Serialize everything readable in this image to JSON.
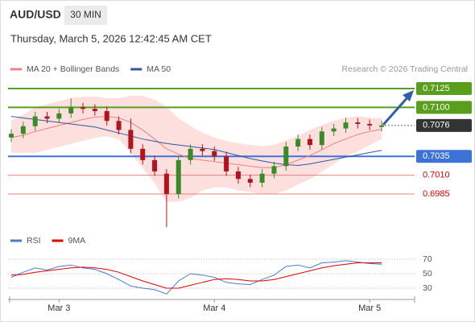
{
  "header": {
    "symbol": "AUD/USD",
    "interval": "30 MIN",
    "timestamp": "Thursday, March 5, 2026 12:42:45 AM CET",
    "credit": "Research © 2026 Trading Central"
  },
  "chart_data": [
    {
      "type": "candlestick",
      "categories": [
        null,
        null,
        null,
        null,
        "Mar 3",
        null,
        null,
        null,
        null,
        null,
        null,
        null,
        null,
        null,
        null,
        null,
        null,
        "Mar 4",
        null,
        null,
        null,
        null,
        null,
        null,
        null,
        null,
        null,
        null,
        null,
        null,
        "Mar 5",
        null
      ],
      "open": [
        0.706,
        0.7065,
        0.7075,
        0.7088,
        0.7085,
        0.7092,
        0.71,
        0.7098,
        0.7095,
        0.7082,
        0.707,
        0.7045,
        0.703,
        0.7012,
        0.6985,
        0.703,
        0.7045,
        0.7042,
        0.7035,
        0.7015,
        0.7005,
        0.7,
        0.7012,
        0.7022,
        0.7048,
        0.7058,
        0.705,
        0.7068,
        0.7072,
        0.708,
        0.7078,
        0.7074
      ],
      "high": [
        0.7071,
        0.7081,
        0.7094,
        0.7094,
        0.7098,
        0.7112,
        0.7106,
        0.7104,
        0.7101,
        0.7088,
        0.7085,
        0.7051,
        0.7036,
        0.7018,
        0.7036,
        0.7051,
        0.7051,
        0.7048,
        0.7041,
        0.7021,
        0.7011,
        0.7018,
        0.7028,
        0.7054,
        0.7064,
        0.7064,
        0.7074,
        0.7078,
        0.7086,
        0.7086,
        0.7084,
        0.7082
      ],
      "low": [
        0.7054,
        0.7059,
        0.7069,
        0.7079,
        0.7079,
        0.7086,
        0.7092,
        0.7089,
        0.7076,
        0.7064,
        0.7039,
        0.7024,
        0.7009,
        0.6941,
        0.6979,
        0.7024,
        0.7036,
        0.7029,
        0.7009,
        0.6999,
        0.6994,
        0.6994,
        0.7006,
        0.7016,
        0.7042,
        0.7044,
        0.7044,
        0.7062,
        0.7066,
        0.7072,
        0.707,
        0.7068
      ],
      "close": [
        0.7065,
        0.7075,
        0.7088,
        0.7085,
        0.7092,
        0.71,
        0.7098,
        0.7095,
        0.7082,
        0.707,
        0.7045,
        0.703,
        0.7015,
        0.6985,
        0.703,
        0.7045,
        0.7042,
        0.7035,
        0.7015,
        0.7005,
        0.7,
        0.7012,
        0.7022,
        0.7048,
        0.7058,
        0.705,
        0.7068,
        0.7072,
        0.708,
        0.7078,
        0.7076,
        0.7076
      ],
      "up_color": "#3a8a2a",
      "down_color": "#b0141e",
      "series": [
        {
          "name": "MA 20 + Bollinger Bands",
          "color": "#f08080",
          "band_color": "#fde0de",
          "values": [
            0.706,
            0.7063,
            0.7068,
            0.7072,
            0.7076,
            0.708,
            0.7084,
            0.7087,
            0.7088,
            0.7086,
            0.708,
            0.707,
            0.7058,
            0.7045,
            0.7038,
            0.7032,
            0.703,
            0.7028,
            0.7026,
            0.7024,
            0.7022,
            0.702,
            0.702,
            0.7024,
            0.703,
            0.7036,
            0.7044,
            0.7052,
            0.7058,
            0.7064,
            0.7068,
            0.7071
          ],
          "upper": [
            0.7082,
            0.709,
            0.71,
            0.7104,
            0.7108,
            0.7112,
            0.7114,
            0.7114,
            0.7112,
            0.7112,
            0.7115,
            0.7115,
            0.711,
            0.71,
            0.7085,
            0.7075,
            0.7066,
            0.706,
            0.7055,
            0.7052,
            0.705,
            0.7048,
            0.705,
            0.7056,
            0.7062,
            0.707,
            0.7076,
            0.7082,
            0.7086,
            0.7088,
            0.7086,
            0.7085
          ],
          "lower": [
            0.704,
            0.704,
            0.704,
            0.7044,
            0.7048,
            0.7052,
            0.7056,
            0.706,
            0.7062,
            0.7058,
            0.704,
            0.702,
            0.7,
            0.6975,
            0.6975,
            0.698,
            0.699,
            0.6994,
            0.6994,
            0.699,
            0.6988,
            0.6985,
            0.6985,
            0.699,
            0.6998,
            0.7005,
            0.7015,
            0.7025,
            0.7035,
            0.7042,
            0.705,
            0.7058
          ]
        },
        {
          "name": "MA 50",
          "color": "#3355a0",
          "values": [
            0.7088,
            0.7086,
            0.7084,
            0.7082,
            0.708,
            0.7078,
            0.7076,
            0.7074,
            0.707,
            0.7066,
            0.7062,
            0.7058,
            0.7055,
            0.7052,
            0.705,
            0.7048,
            0.7046,
            0.7044,
            0.704,
            0.7036,
            0.7032,
            0.7029,
            0.7026,
            0.7024,
            0.7023,
            0.7025,
            0.7028,
            0.7031,
            0.7034,
            0.7037,
            0.704,
            0.7043
          ]
        }
      ],
      "levels": [
        {
          "value": 0.7125,
          "color": "#5a9e1e",
          "boxed": true
        },
        {
          "value": 0.71,
          "label": "0.7100",
          "color": "#5a9e1e",
          "boxed": true
        },
        {
          "value": 0.7035,
          "color": "#3d73d6",
          "boxed": true
        },
        {
          "value": 0.701,
          "label": "0.7010",
          "color": "#e88080",
          "boxed": false
        },
        {
          "value": 0.6985,
          "color": "#e88080",
          "boxed": false
        }
      ],
      "last": {
        "value": 0.7076,
        "color": "#333333"
      },
      "ylim": [
        0.6938,
        0.7141
      ]
    },
    {
      "type": "line",
      "series": [
        {
          "name": "RSI",
          "color": "#4a7bd0",
          "values": [
            45,
            52,
            58,
            55,
            60,
            62,
            58,
            56,
            50,
            42,
            33,
            30,
            28,
            22,
            40,
            50,
            48,
            45,
            38,
            36,
            35,
            42,
            48,
            60,
            62,
            58,
            65,
            66,
            68,
            66,
            64,
            63
          ]
        },
        {
          "name": "9MA",
          "color": "#e00000",
          "values": [
            48,
            49,
            52,
            54,
            56,
            58,
            59,
            58,
            56,
            52,
            46,
            40,
            35,
            30,
            30,
            34,
            38,
            42,
            43,
            42,
            40,
            40,
            42,
            46,
            50,
            54,
            58,
            61,
            63,
            65,
            65,
            65
          ]
        }
      ],
      "ylim": [
        15,
        80
      ],
      "yticks": [
        30,
        50,
        70
      ]
    }
  ]
}
